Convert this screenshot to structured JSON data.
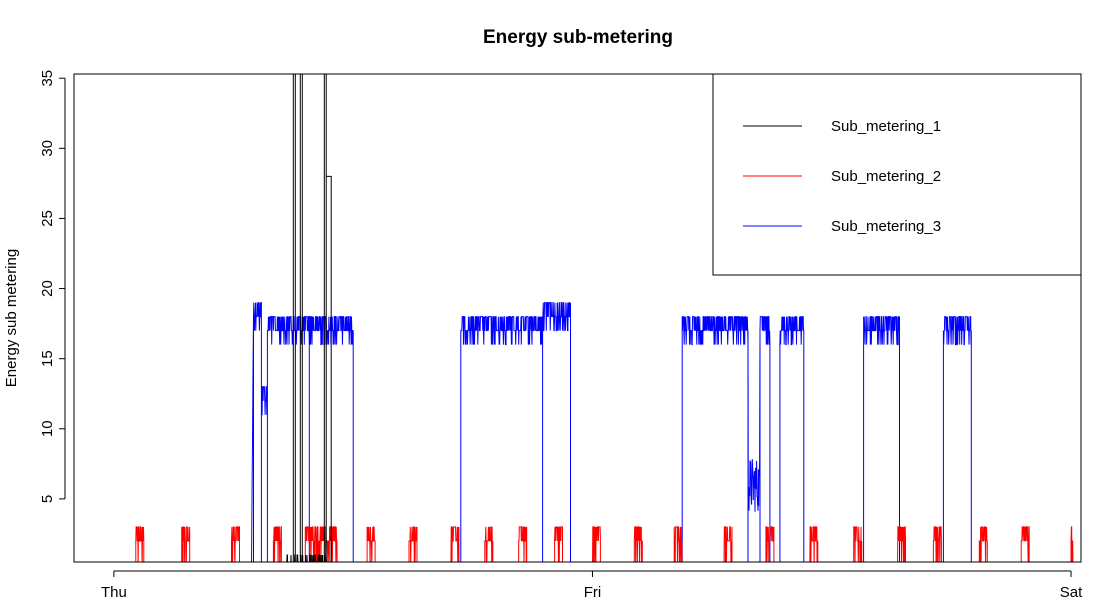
{
  "chart_data": {
    "type": "line",
    "title": "Energy sub-metering",
    "xlabel": "",
    "ylabel": "Energy sub metering",
    "x_ticks": [
      "Thu",
      "Fri",
      "Sat"
    ],
    "y_ticks": [
      5,
      10,
      15,
      20,
      25,
      30,
      35
    ],
    "xlim_hours": [
      -2,
      48.5
    ],
    "ylim": [
      0.5,
      35.3
    ],
    "legend_position": "top-right",
    "series": [
      {
        "name": "Sub_metering_1",
        "color": "#000000",
        "baseline": 0,
        "segments": [
          {
            "start": 8.6,
            "end": 10.7,
            "level": 1,
            "pattern": "sparse"
          },
          {
            "start": 9.0,
            "end": 9.1,
            "level": 37,
            "pattern": "spike"
          },
          {
            "start": 9.35,
            "end": 9.45,
            "level": 38,
            "pattern": "spike"
          },
          {
            "start": 10.55,
            "end": 10.65,
            "level": 38,
            "pattern": "spike"
          },
          {
            "start": 10.65,
            "end": 10.9,
            "level": 28,
            "pattern": "spike"
          }
        ]
      },
      {
        "name": "Sub_metering_2",
        "color": "#ff0000",
        "baseline": 0,
        "segments": [
          {
            "start": 1.1,
            "end": 1.5,
            "level": 2,
            "pattern": "noise"
          },
          {
            "start": 3.4,
            "end": 3.8,
            "level": 2,
            "pattern": "noise"
          },
          {
            "start": 5.9,
            "end": 6.3,
            "level": 2,
            "pattern": "noise"
          },
          {
            "start": 8.0,
            "end": 8.4,
            "level": 2,
            "pattern": "noise"
          },
          {
            "start": 9.6,
            "end": 10.6,
            "level": 2,
            "pattern": "noise"
          },
          {
            "start": 10.6,
            "end": 10.8,
            "level": 1,
            "pattern": "noise"
          },
          {
            "start": 10.8,
            "end": 11.2,
            "level": 2,
            "pattern": "noise"
          },
          {
            "start": 12.7,
            "end": 13.1,
            "level": 2,
            "pattern": "noise"
          },
          {
            "start": 14.8,
            "end": 15.2,
            "level": 2,
            "pattern": "noise"
          },
          {
            "start": 16.9,
            "end": 17.3,
            "level": 2,
            "pattern": "noise"
          },
          {
            "start": 18.6,
            "end": 19.0,
            "level": 2,
            "pattern": "noise"
          },
          {
            "start": 20.3,
            "end": 20.7,
            "level": 2,
            "pattern": "noise"
          },
          {
            "start": 22.1,
            "end": 22.5,
            "level": 2,
            "pattern": "noise"
          },
          {
            "start": 24.0,
            "end": 24.4,
            "level": 2,
            "pattern": "noise"
          },
          {
            "start": 26.1,
            "end": 26.5,
            "level": 2,
            "pattern": "noise"
          },
          {
            "start": 28.1,
            "end": 28.5,
            "level": 2,
            "pattern": "noise"
          },
          {
            "start": 30.6,
            "end": 31.0,
            "level": 2,
            "pattern": "noise"
          },
          {
            "start": 32.7,
            "end": 33.1,
            "level": 2,
            "pattern": "noise"
          },
          {
            "start": 34.9,
            "end": 35.3,
            "level": 2,
            "pattern": "noise"
          },
          {
            "start": 37.1,
            "end": 37.5,
            "level": 2,
            "pattern": "noise"
          },
          {
            "start": 39.3,
            "end": 39.7,
            "level": 2,
            "pattern": "noise"
          },
          {
            "start": 41.1,
            "end": 41.5,
            "level": 2,
            "pattern": "noise"
          },
          {
            "start": 43.4,
            "end": 43.8,
            "level": 2,
            "pattern": "noise"
          },
          {
            "start": 45.5,
            "end": 45.9,
            "level": 2,
            "pattern": "noise"
          },
          {
            "start": 48.0,
            "end": 48.1,
            "level": 2,
            "pattern": "noise"
          }
        ]
      },
      {
        "name": "Sub_metering_3",
        "color": "#0000ff",
        "baseline": 0,
        "segments": [
          {
            "start": 6.9,
            "end": 7.0,
            "level": 6,
            "pattern": "ramp"
          },
          {
            "start": 7.0,
            "end": 7.4,
            "level": 18,
            "pattern": "noise"
          },
          {
            "start": 7.4,
            "end": 7.7,
            "level": 12,
            "pattern": "noise"
          },
          {
            "start": 7.7,
            "end": 9.8,
            "level": 17,
            "pattern": "noise"
          },
          {
            "start": 9.8,
            "end": 12.0,
            "level": 17,
            "pattern": "noise"
          },
          {
            "start": 17.4,
            "end": 21.5,
            "level": 17,
            "pattern": "noise"
          },
          {
            "start": 21.5,
            "end": 22.9,
            "level": 18,
            "pattern": "noise"
          },
          {
            "start": 28.5,
            "end": 31.8,
            "level": 17,
            "pattern": "noise"
          },
          {
            "start": 31.8,
            "end": 32.4,
            "level": 4,
            "pattern": "dip"
          },
          {
            "start": 32.4,
            "end": 32.9,
            "level": 17,
            "pattern": "noise"
          },
          {
            "start": 33.4,
            "end": 34.6,
            "level": 17,
            "pattern": "noise"
          },
          {
            "start": 37.6,
            "end": 39.4,
            "level": 17,
            "pattern": "noise"
          },
          {
            "start": 41.6,
            "end": 43.0,
            "level": 17,
            "pattern": "noise"
          }
        ]
      }
    ]
  }
}
